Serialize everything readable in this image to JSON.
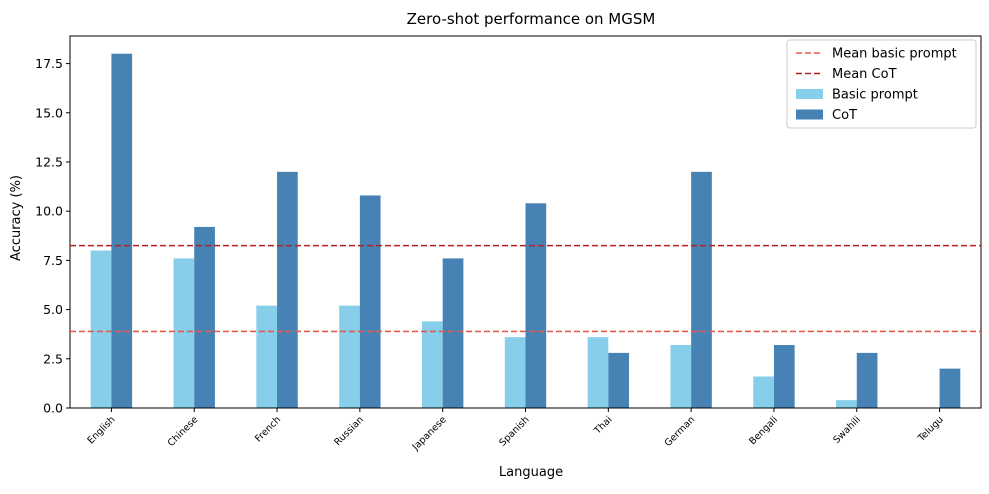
{
  "chart_data": {
    "type": "bar",
    "title": "Zero-shot performance on MGSM",
    "xlabel": "Language",
    "ylabel": "Accuracy (%)",
    "ylim": [
      0,
      18.9
    ],
    "yticks": [
      "0.0",
      "2.5",
      "5.0",
      "7.5",
      "10.0",
      "12.5",
      "15.0",
      "17.5"
    ],
    "categories": [
      "English",
      "Chinese",
      "French",
      "Russian",
      "Japanese",
      "Spanish",
      "Thai",
      "German",
      "Bengali",
      "Swahili",
      "Telugu"
    ],
    "series": [
      {
        "name": "Basic prompt",
        "color": "#87ceeb",
        "values": [
          8.0,
          7.6,
          5.2,
          5.2,
          4.4,
          3.6,
          3.6,
          3.2,
          1.6,
          0.4,
          0.0
        ]
      },
      {
        "name": "CoT",
        "color": "#4682b4",
        "values": [
          18.0,
          9.2,
          12.0,
          10.8,
          7.6,
          10.4,
          2.8,
          12.0,
          3.2,
          2.8,
          2.0
        ]
      }
    ],
    "reference_lines": [
      {
        "name": "Mean basic prompt",
        "value": 3.89,
        "color": "#e35a4f",
        "style": "dashed"
      },
      {
        "name": "Mean CoT",
        "value": 8.25,
        "color": "#b22222",
        "style": "dashed"
      }
    ],
    "legend": {
      "position": "top-right",
      "entries": [
        "Mean basic prompt",
        "Mean CoT",
        "Basic prompt",
        "CoT"
      ]
    },
    "grid": false
  }
}
